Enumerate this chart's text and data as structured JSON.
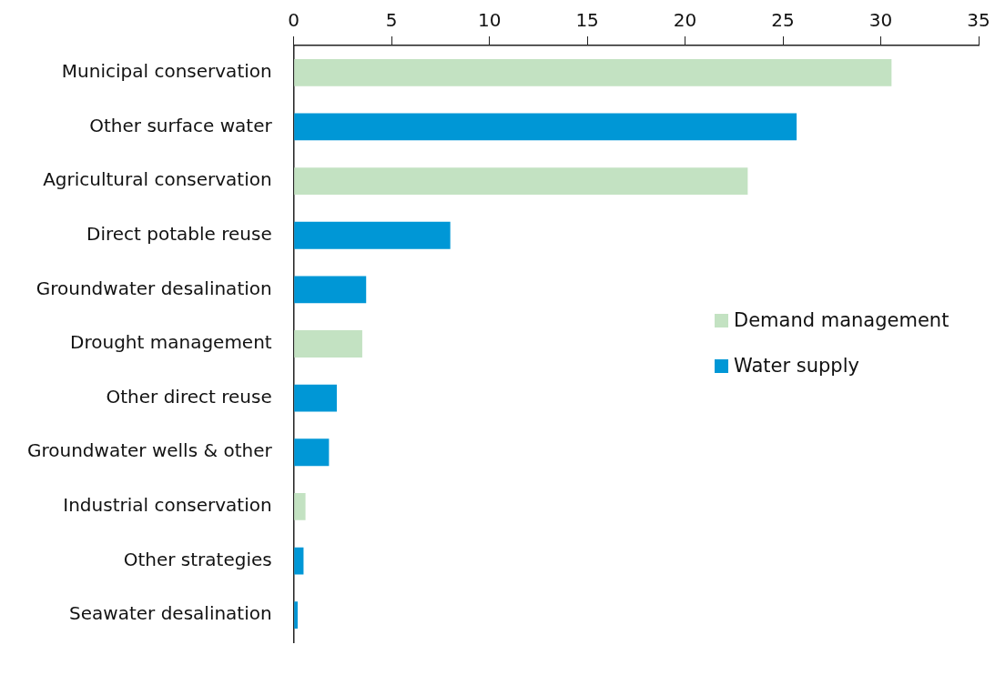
{
  "chart_data": {
    "type": "bar",
    "orientation": "horizontal",
    "categories": [
      "Municipal conservation",
      "Other surface water",
      "Agricultural conservation",
      "Direct potable reuse",
      "Groundwater desalination",
      "Drought management",
      "Other direct reuse",
      "Groundwater wells & other",
      "Industrial conservation",
      "Other strategies",
      "Seawater desalination"
    ],
    "series": [
      {
        "name": "Demand management",
        "color": "#c3e2c2",
        "values": [
          30.55,
          null,
          23.2,
          null,
          null,
          3.5,
          null,
          null,
          0.6,
          null,
          null
        ]
      },
      {
        "name": "Water supply",
        "color": "#0097d6",
        "values": [
          null,
          25.7,
          null,
          8.0,
          3.7,
          null,
          2.2,
          1.8,
          null,
          0.5,
          0.2
        ]
      }
    ],
    "xlim": [
      0,
      35
    ],
    "xticks": [
      0,
      5,
      10,
      15,
      20,
      25,
      30,
      35
    ],
    "grid": false,
    "legend": "right"
  }
}
